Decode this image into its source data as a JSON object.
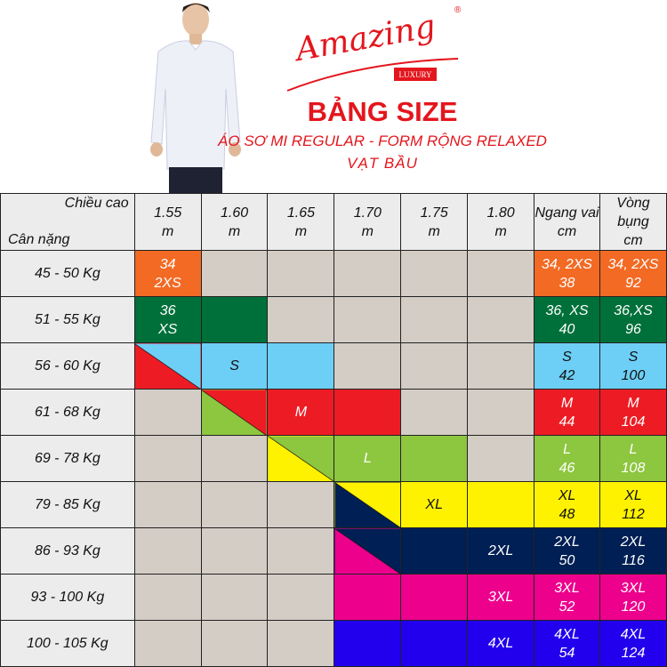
{
  "brand": {
    "logo_text": "Amazing",
    "sub_text": "LUXURY",
    "registered": "®"
  },
  "title": "BẢNG SIZE",
  "subtitle": "ÁO SƠ MI REGULAR - FORM RỘNG RELAXED",
  "subtitle2": "VẠT BẦU",
  "colors": {
    "accent": "#e3161d",
    "empty": "#d4cdc6",
    "header": "#ececec"
  },
  "table": {
    "corner_top": "Chiều cao",
    "corner_bottom": "Cân nặng",
    "heights": [
      "1.55\nm",
      "1.60\nm",
      "1.65\nm",
      "1.70\nm",
      "1.75\nm",
      "1.80\nm"
    ],
    "shoulder_header": "Ngang vai\ncm",
    "waist_header": "Vòng bụng\ncm",
    "rows": [
      {
        "weight": "45 - 50 Kg",
        "cells": [
          {
            "bg": "#f26a24",
            "text": "34\n2XS",
            "fg": "#fff"
          },
          {},
          {},
          {},
          {},
          {}
        ],
        "shoulder": "34, 2XS\n38",
        "waist": "34, 2XS\n92",
        "bg": "#f26a24",
        "fg": "#fff"
      },
      {
        "weight": "51 - 55 Kg",
        "cells": [
          {
            "bg": "#00703a",
            "text": "36\nXS",
            "fg": "#fff"
          },
          {
            "bg": "#00703a"
          },
          {},
          {},
          {},
          {}
        ],
        "shoulder": "36, XS\n40",
        "waist": "36,XS\n96",
        "bg": "#00703a",
        "fg": "#fff"
      },
      {
        "weight": "56 - 60 Kg",
        "cells": [
          {
            "bg": "#6dcff6",
            "lower": "#ed1c24"
          },
          {
            "bg": "#6dcff6",
            "text": "S",
            "fg": "#111"
          },
          {
            "bg": "#6dcff6"
          },
          {},
          {},
          {}
        ],
        "shoulder": "S\n42",
        "waist": "S\n100",
        "bg": "#6dcff6",
        "fg": "#111"
      },
      {
        "weight": "61 - 68 Kg",
        "cells": [
          {},
          {
            "bg": "#ed1c24",
            "lower": "#8dc63f"
          },
          {
            "bg": "#ed1c24",
            "text": "M",
            "fg": "#fff"
          },
          {
            "bg": "#ed1c24"
          },
          {},
          {}
        ],
        "shoulder": "M\n44",
        "waist": "M\n104",
        "bg": "#ed1c24",
        "fg": "#fff"
      },
      {
        "weight": "69 - 78 Kg",
        "cells": [
          {},
          {},
          {
            "bg": "#8dc63f",
            "lower": "#fff200"
          },
          {
            "bg": "#8dc63f",
            "text": "L",
            "fg": "#fff"
          },
          {
            "bg": "#8dc63f"
          },
          {}
        ],
        "shoulder": "L\n46",
        "waist": "L\n108",
        "bg": "#8dc63f",
        "fg": "#fff"
      },
      {
        "weight": "79 - 85 Kg",
        "cells": [
          {},
          {},
          {},
          {
            "bg": "#fff200",
            "lower": "#001f54"
          },
          {
            "bg": "#fff200",
            "text": "XL",
            "fg": "#111"
          },
          {
            "bg": "#fff200"
          }
        ],
        "shoulder": "XL\n48",
        "waist": "XL\n112",
        "bg": "#fff200",
        "fg": "#111"
      },
      {
        "weight": "86 - 93 Kg",
        "cells": [
          {},
          {},
          {},
          {
            "bg": "#001f54",
            "lower": "#ec008c"
          },
          {
            "bg": "#001f54"
          },
          {
            "bg": "#001f54",
            "text": "2XL",
            "fg": "#fff"
          }
        ],
        "shoulder": "2XL\n50",
        "waist": "2XL\n116",
        "bg": "#001f54",
        "fg": "#fff"
      },
      {
        "weight": "93 - 100 Kg",
        "cells": [
          {},
          {},
          {},
          {
            "bg": "#ec008c"
          },
          {
            "bg": "#ec008c"
          },
          {
            "bg": "#ec008c",
            "text": "3XL",
            "fg": "#fff"
          }
        ],
        "shoulder": "3XL\n52",
        "waist": "3XL\n120",
        "bg": "#ec008c",
        "fg": "#fff"
      },
      {
        "weight": "100 - 105 Kg",
        "cells": [
          {},
          {},
          {},
          {
            "bg": "#2200ee"
          },
          {
            "bg": "#2200ee"
          },
          {
            "bg": "#2200ee",
            "text": "4XL",
            "fg": "#fff"
          }
        ],
        "shoulder": "4XL\n54",
        "waist": "4XL\n124",
        "bg": "#2200ee",
        "fg": "#fff"
      }
    ]
  }
}
